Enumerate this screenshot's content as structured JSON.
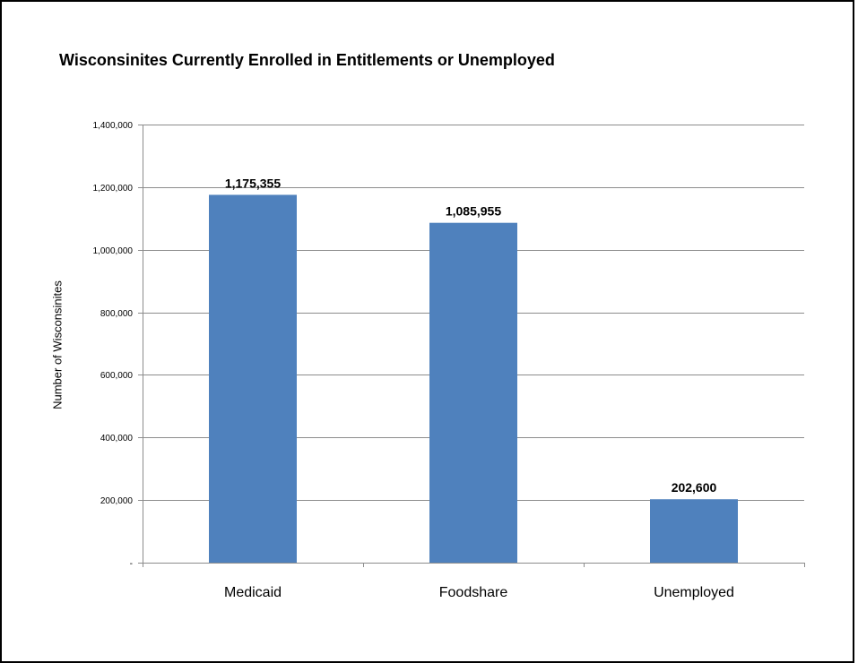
{
  "chart_data": {
    "type": "bar",
    "title": "Wisconsinites Currently Enrolled in Entitlements or Unemployed",
    "xlabel": "",
    "ylabel": "Number of Wisconsinites",
    "categories": [
      "Medicaid",
      "Foodshare",
      "Unemployed"
    ],
    "values": [
      1175355,
      1085955,
      202600
    ],
    "value_labels": [
      "1,175,355",
      "1,085,955",
      "202,600"
    ],
    "ylim": [
      0,
      1400000
    ],
    "yticks": [
      0,
      200000,
      400000,
      600000,
      800000,
      1000000,
      1200000,
      1400000
    ],
    "ytick_labels": [
      "-",
      "200,000",
      "400,000",
      "600,000",
      "800,000",
      "1,000,000",
      "1,200,000",
      "1,400,000"
    ],
    "grid": true,
    "legend": "none",
    "bar_color": "#4F81BD"
  }
}
